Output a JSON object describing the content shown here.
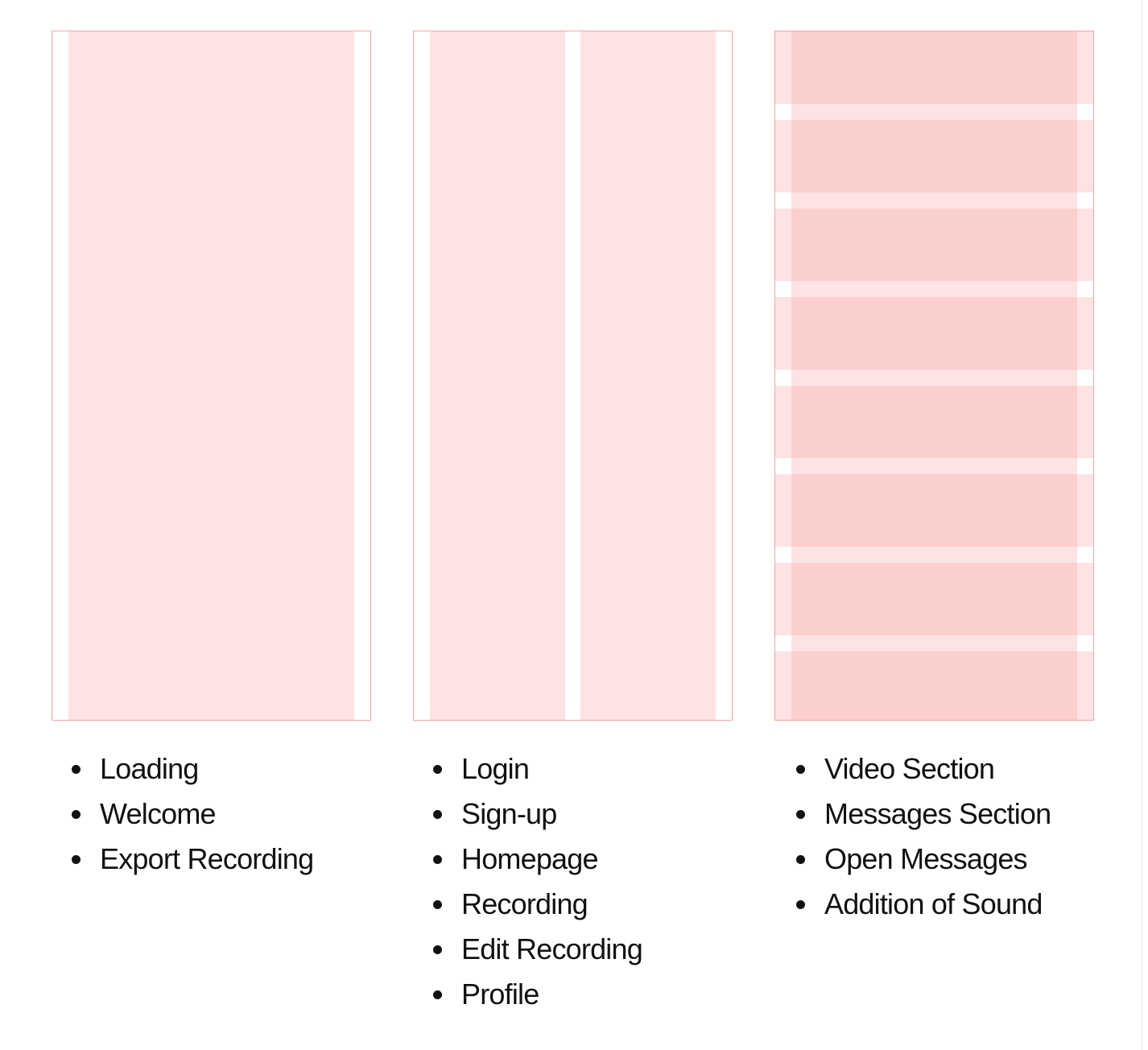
{
  "colors": {
    "column_fill": "#fde3e3",
    "row_fill": "#fccfcf",
    "frame_border": "#f2a6a0",
    "text": "#111111"
  },
  "grids": [
    {
      "type": "columns",
      "columns": 1,
      "items": [
        "Loading",
        "Welcome",
        "Export Recording"
      ]
    },
    {
      "type": "columns",
      "columns": 2,
      "items": [
        "Login",
        "Sign-up",
        "Homepage",
        "Recording",
        "Edit Recording",
        "Profile"
      ]
    },
    {
      "type": "rows",
      "rows": 8,
      "items": [
        "Video Section",
        "Messages Section",
        "Open Messages",
        "Addition of Sound"
      ]
    }
  ]
}
